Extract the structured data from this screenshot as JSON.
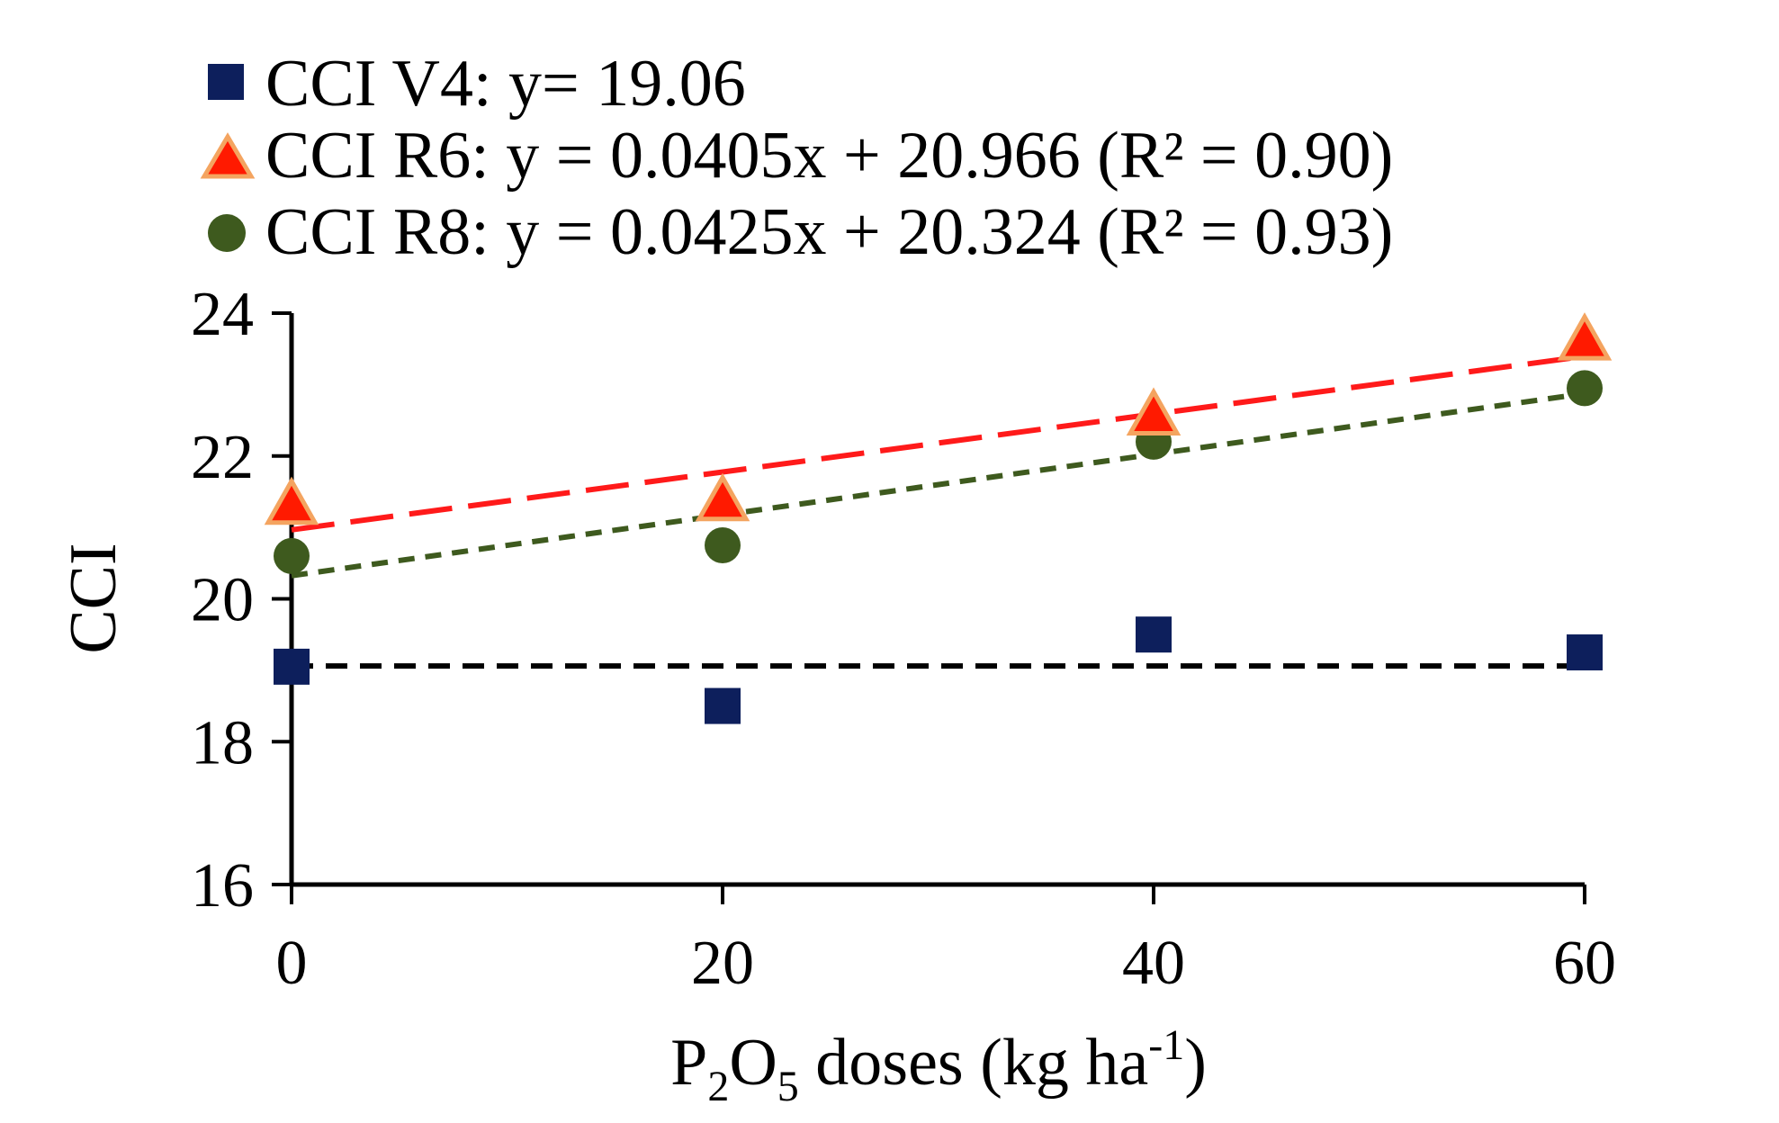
{
  "chart_data": {
    "type": "scatter",
    "xlabel_base": "P",
    "xlabel_sub1": "2",
    "xlabel_mid": "O",
    "xlabel_sub2": "5",
    "xlabel_rest": " doses (kg ha",
    "xlabel_sup": "-1",
    "xlabel_close": ")",
    "ylabel": "CCI",
    "x_ticks": [
      0,
      20,
      40,
      60
    ],
    "y_ticks": [
      16,
      18,
      20,
      22,
      24
    ],
    "xlim": [
      0,
      60
    ],
    "ylim": [
      16,
      24
    ],
    "legend_position": "top",
    "series": [
      {
        "name": "CCI V4",
        "legend_label": "CCI V4: y= 19.06",
        "marker": "square",
        "color": "#0d1f5c",
        "x": [
          0,
          20,
          40,
          60
        ],
        "y": [
          19.05,
          18.5,
          19.5,
          19.25
        ],
        "trend": {
          "slope": 0,
          "intercept": 19.06,
          "color": "#000000",
          "dash": "dashed"
        }
      },
      {
        "name": "CCI R6",
        "legend_label": "CCI R6: y = 0.0405x + 20.966 (R² = 0.90)",
        "marker": "triangle",
        "color": "#ff1a00",
        "edge_color": "#f4a460",
        "x": [
          0,
          20,
          40,
          60
        ],
        "y": [
          21.3,
          21.35,
          22.55,
          23.6
        ],
        "trend": {
          "slope": 0.0405,
          "intercept": 20.966,
          "color": "#ff1a1a",
          "dash": "long-dash"
        }
      },
      {
        "name": "CCI R8",
        "legend_label": "CCI R8: y = 0.0425x + 20.324 (R² = 0.93)",
        "marker": "circle",
        "color": "#3e5a1e",
        "x": [
          0,
          20,
          40,
          60
        ],
        "y": [
          20.6,
          20.75,
          22.2,
          22.95
        ],
        "trend": {
          "slope": 0.0425,
          "intercept": 20.324,
          "color": "#3e5a1e",
          "dash": "short-dash"
        }
      }
    ]
  }
}
